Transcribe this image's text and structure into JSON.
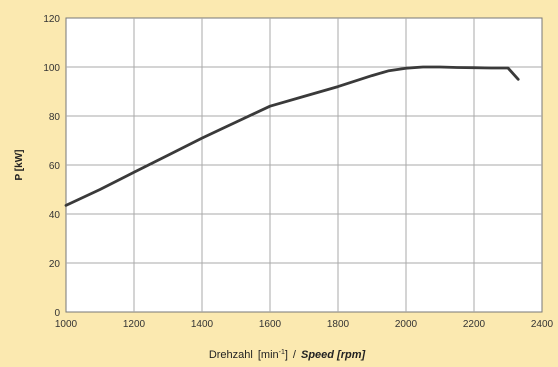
{
  "chart_data": {
    "type": "line",
    "title": "",
    "xlabel": {
      "main": "Drehzahl",
      "unit_de": "[min",
      "unit_sup": "-1",
      "unit_close": "]",
      "sep": "/",
      "en": "Speed [rpm]"
    },
    "ylabel": "P [kW]",
    "xlim": [
      1000,
      2400
    ],
    "ylim": [
      0,
      120
    ],
    "xticks": [
      1000,
      1200,
      1400,
      1600,
      1800,
      2000,
      2200,
      2400
    ],
    "yticks": [
      0,
      20,
      40,
      60,
      80,
      100,
      120
    ],
    "grid": true,
    "legend": "none",
    "series": [
      {
        "color": "#3a3a3a",
        "x": [
          1000,
          1100,
          1200,
          1300,
          1400,
          1500,
          1600,
          1700,
          1800,
          1900,
          1950,
          2000,
          2050,
          2100,
          2150,
          2200,
          2250,
          2300,
          2330
        ],
        "y": [
          43.5,
          50,
          57,
          64,
          71,
          77.5,
          84,
          88,
          92,
          96.5,
          98.5,
          99.5,
          100,
          100,
          99.8,
          99.7,
          99.6,
          99.6,
          95
        ]
      }
    ],
    "colors": {
      "background": "#fbe9b0",
      "plot_area": "#ffffff",
      "grid": "#aaaaaa",
      "line": "#3a3a3a"
    }
  }
}
